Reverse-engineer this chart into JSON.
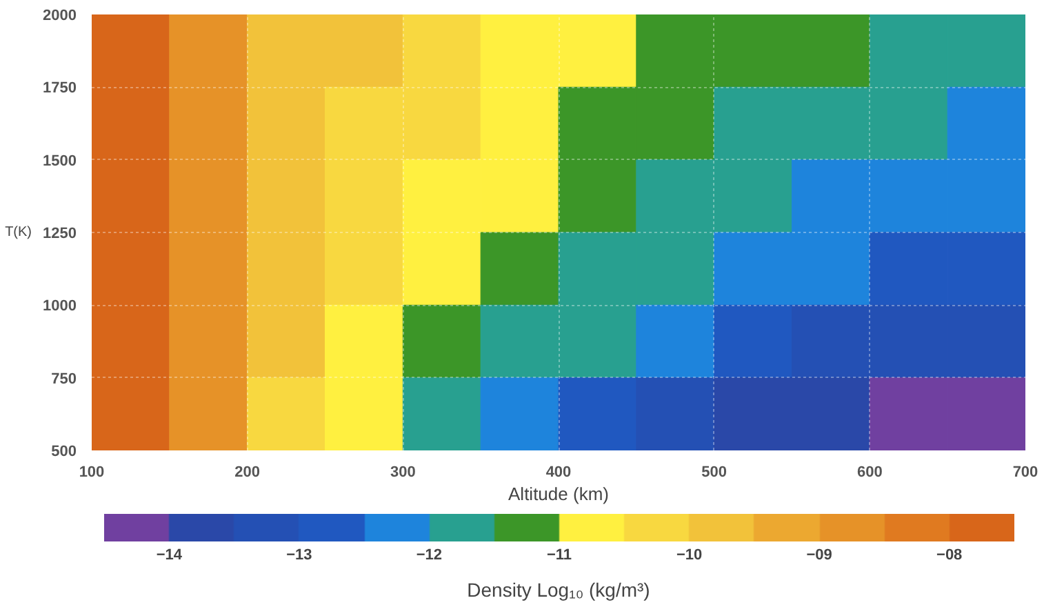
{
  "chart_data": {
    "type": "heatmap",
    "xlabel": "Altitude (km)",
    "ylabel": "T(K)",
    "clabel": "Density Log₁₀ (kg/m³)",
    "x": [
      125,
      175,
      225,
      275,
      325,
      375,
      425,
      475,
      525,
      575,
      625,
      675
    ],
    "y": [
      1875,
      1625,
      1375,
      1125,
      875,
      625
    ],
    "xlim": [
      100,
      700
    ],
    "xticks": [
      100,
      200,
      300,
      400,
      500,
      600,
      700
    ],
    "ylim": [
      500,
      2000
    ],
    "yticks": [
      500,
      750,
      1000,
      1250,
      1500,
      1750,
      2000
    ],
    "clim": [
      -14.5,
      -7.5
    ],
    "cticks": [
      -14,
      -13,
      -12,
      -11,
      -10,
      {
        "value": -9,
        "label": "−09"
      },
      {
        "value": -8,
        "label": "−08"
      }
    ],
    "colors": [
      "#7040a0",
      "#2a48a8",
      "#2450b4",
      "#2058c0",
      "#1e84dc",
      "#28a090",
      "#3c9628",
      "#fff040",
      "#f8d840",
      "#f2c23a",
      "#eca830",
      "#e69228",
      "#e07a20",
      "#d8661a"
    ],
    "cells": [
      [
        -7.75,
        -8.75,
        -9.75,
        -9.75,
        -10.25,
        -10.75,
        -10.75,
        -11.25,
        -11.25,
        -11.25,
        -11.75,
        -11.75
      ],
      [
        -7.75,
        -8.75,
        -9.75,
        -10.25,
        -10.25,
        -10.75,
        -11.25,
        -11.25,
        -11.75,
        -11.75,
        -11.75,
        -12.25
      ],
      [
        -7.75,
        -8.75,
        -9.75,
        -10.25,
        -10.75,
        -10.75,
        -11.25,
        -11.75,
        -11.75,
        -12.25,
        -12.25,
        -12.25
      ],
      [
        -7.75,
        -8.75,
        -9.75,
        -10.25,
        -10.75,
        -11.25,
        -11.75,
        -11.75,
        -12.25,
        -12.25,
        -12.75,
        -12.75
      ],
      [
        -7.75,
        -8.75,
        -9.75,
        -10.75,
        -11.25,
        -11.75,
        -11.75,
        -12.25,
        -12.75,
        -13.25,
        -13.25,
        -13.25
      ],
      [
        -7.75,
        -8.75,
        -10.25,
        -10.75,
        -11.75,
        -12.25,
        -12.75,
        -13.25,
        -13.75,
        -13.75,
        -14.25,
        -14.25
      ]
    ],
    "grid": true
  }
}
